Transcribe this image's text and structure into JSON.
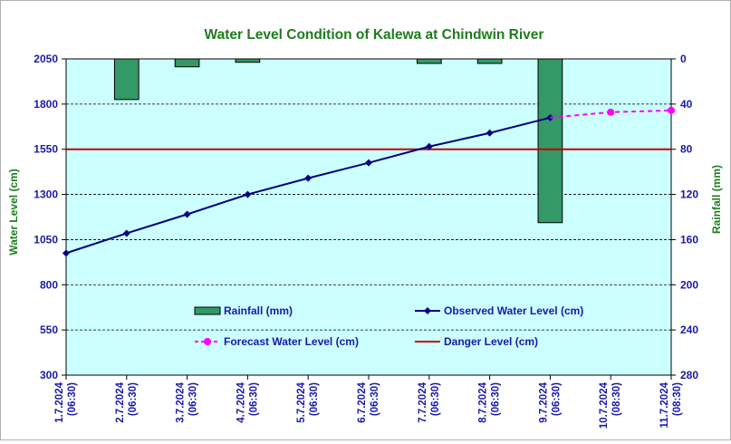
{
  "chart_data": {
    "type": "combo",
    "title": "Water Level Condition of Kalewa at Chindwin River",
    "ylabel_left": "Water Level (cm)",
    "ylabel_right": "Rainfall (mm)",
    "ylim_left": [
      300,
      2050
    ],
    "yticks_left": [
      300,
      550,
      800,
      1050,
      1300,
      1550,
      1800,
      2050
    ],
    "ylim_right": [
      0,
      280
    ],
    "right_axis_inverted": true,
    "yticks_right": [
      0,
      40,
      80,
      120,
      160,
      200,
      240,
      280
    ],
    "categories": [
      [
        "1.7.2024",
        "(06:30)"
      ],
      [
        "2.7.2024",
        "(06:30)"
      ],
      [
        "3.7.2024",
        "(06:30)"
      ],
      [
        "4.7.2024",
        "(06:30)"
      ],
      [
        "5.7.2024",
        "(06:30)"
      ],
      [
        "6.7.2024",
        "(06:30)"
      ],
      [
        "7.7.2024",
        "(06:30)"
      ],
      [
        "8.7.2024",
        "(06:30)"
      ],
      [
        "9.7.2024",
        "(06:30)"
      ],
      [
        "10.7.2024",
        "(08:30)"
      ],
      [
        "11.7.2024",
        "(08:30)"
      ]
    ],
    "grid": "horizontal dashed",
    "plot_background": "#ccffff",
    "series": [
      {
        "name": "Rainfall (mm)",
        "kind": "bar",
        "axis": "right",
        "color": "#339966",
        "values": [
          0,
          36,
          7,
          3,
          0,
          0,
          4,
          4,
          145,
          0,
          0
        ]
      },
      {
        "name": "Observed Water Level (cm)",
        "kind": "line",
        "axis": "left",
        "color": "#000080",
        "marker": "diamond",
        "values": [
          975,
          1085,
          1190,
          1300,
          1390,
          1475,
          1565,
          1640,
          1725,
          null,
          null
        ]
      },
      {
        "name": "Forecast Water Level (cm)",
        "kind": "line",
        "axis": "left",
        "color": "#ff00ff",
        "marker": "circle",
        "dashed": true,
        "values": [
          null,
          null,
          null,
          null,
          null,
          null,
          null,
          null,
          1725,
          1755,
          1765
        ]
      },
      {
        "name": "Danger Level (cm)",
        "kind": "hline",
        "axis": "left",
        "color": "#cc0000",
        "value": 1550
      }
    ],
    "legend": {
      "placement": "inside-lower-center",
      "order": [
        "Rainfall (mm)",
        "Observed Water Level (cm)",
        "Forecast Water Level (cm)",
        "Danger Level (cm)"
      ]
    }
  }
}
